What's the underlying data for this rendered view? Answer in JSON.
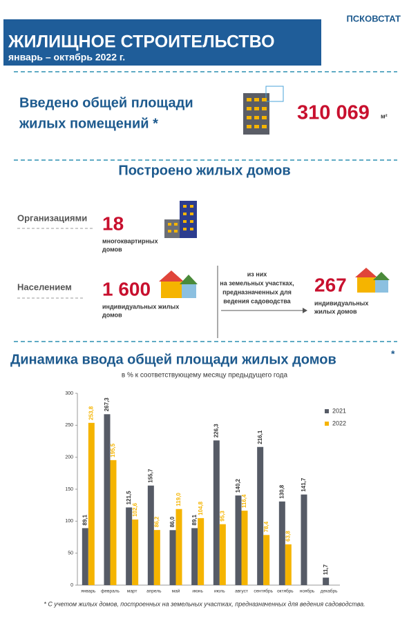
{
  "agency": "ПСКОВСТАТ",
  "header": {
    "title": "ЖИЛИЩНОЕ СТРОИТЕЛЬСТВО",
    "subtitle": "январь – октябрь 2022 г."
  },
  "area": {
    "label_lines": [
      "Введено общей площади",
      "жилых помещений *"
    ],
    "value": "310 069",
    "unit": "м²"
  },
  "built": {
    "title": "Построено жилых домов",
    "organizations": {
      "label": "Организациями",
      "value": "18",
      "desc_lines": [
        "многоквартирных",
        "домов"
      ]
    },
    "population": {
      "label": "Населением",
      "value": "1 600",
      "desc_lines": [
        "индивидуальных жилых",
        "домов"
      ]
    },
    "garden": {
      "note_lines": [
        "из них",
        "на земельных участках,",
        "предназначенных для",
        "ведения садоводства"
      ],
      "value": "267",
      "desc_lines": [
        "индивидуальных",
        "жилых домов"
      ]
    }
  },
  "chart_data": {
    "type": "bar",
    "title": "Динамика ввода общей площади жилых домов",
    "title_note": "*",
    "subtitle": "в % к соответствующему месяцу предыдущего года",
    "categories": [
      "январь",
      "февраль",
      "март",
      "апрель",
      "май",
      "июнь",
      "июль",
      "август",
      "сентябрь",
      "октябрь",
      "ноябрь",
      "декабрь"
    ],
    "series": [
      {
        "name": "2021",
        "color": "#565b66",
        "values": [
          89.1,
          267.3,
          121.5,
          155.7,
          86.0,
          89.1,
          226.3,
          140.2,
          216.1,
          130.8,
          141.7,
          11.7
        ],
        "value_labels": [
          "89,1",
          "267,3",
          "121,5",
          "155,7",
          "86,0",
          "89,1",
          "226,3",
          "140,2",
          "216,1",
          "130,8",
          "141,7",
          "11,7"
        ]
      },
      {
        "name": "2022",
        "color": "#f5b400",
        "values": [
          253.8,
          195.5,
          102.6,
          86.2,
          119.0,
          104.8,
          95.3,
          116.4,
          78.4,
          63.8,
          null,
          null
        ],
        "value_labels": [
          "253,8",
          "195,5",
          "102,6",
          "86,2",
          "119,0",
          "104,8",
          "95,3",
          "116,4",
          "78,4",
          "63,8",
          null,
          null
        ]
      }
    ],
    "ylim": [
      0,
      300
    ],
    "yticks": [
      0,
      50,
      100,
      150,
      200,
      250,
      300
    ],
    "grid": false,
    "legend": "right"
  },
  "footnote": "* С учетом жилых домов, построенных на земельных участках, предназначенных для ведения садоводства."
}
